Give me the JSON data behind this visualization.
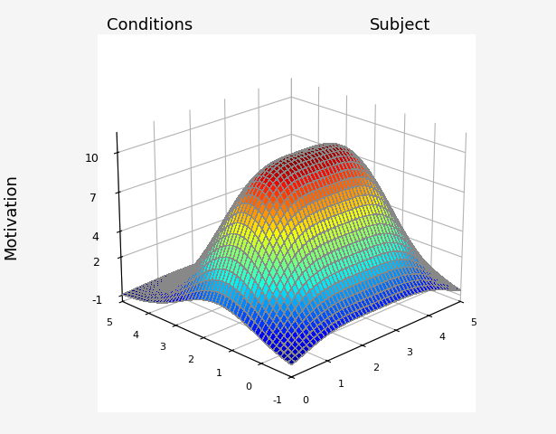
{
  "title_left": "Conditions",
  "title_right": "Subject",
  "zlabel": "Motivation",
  "x_ticks": [
    0,
    1,
    2,
    3,
    4,
    5
  ],
  "y_ticks_left": [
    -1,
    2,
    4,
    7,
    10
  ],
  "z_ticks": [
    -1,
    2,
    4,
    7,
    10
  ],
  "background_color": "#ffffff",
  "pane_color": [
    1.0,
    1.0,
    1.0,
    1.0
  ],
  "colormap": "jet",
  "n_points": 50,
  "elev": 22,
  "azim": -135,
  "xlim": [
    0,
    5
  ],
  "ylim": [
    -1,
    5
  ],
  "zlim": [
    -1.5,
    11.5
  ]
}
